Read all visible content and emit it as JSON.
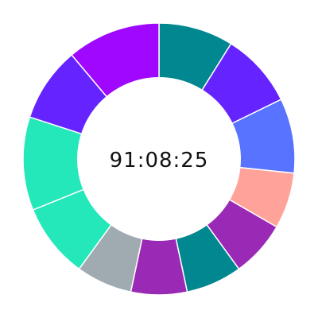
{
  "timer": {
    "value": "91:08:25"
  },
  "chart_data": {
    "type": "pie",
    "title": "",
    "slices": [
      {
        "value": 1,
        "color": "#00878f"
      },
      {
        "value": 1,
        "color": "#6524ff"
      },
      {
        "value": 1,
        "color": "#5773ff"
      },
      {
        "value": 0.75,
        "color": "#ffa39a"
      },
      {
        "value": 0.75,
        "color": "#9a29b5"
      },
      {
        "value": 0.75,
        "color": "#00878f"
      },
      {
        "value": 0.75,
        "color": "#9a29b5"
      },
      {
        "value": 0.75,
        "color": "#a0aab1"
      },
      {
        "value": 1,
        "color": "#24e8ba"
      },
      {
        "value": 1.25,
        "color": "#24e8ba"
      },
      {
        "value": 1,
        "color": "#6524ff"
      },
      {
        "value": 1.25,
        "color": "#a007ff"
      }
    ]
  }
}
